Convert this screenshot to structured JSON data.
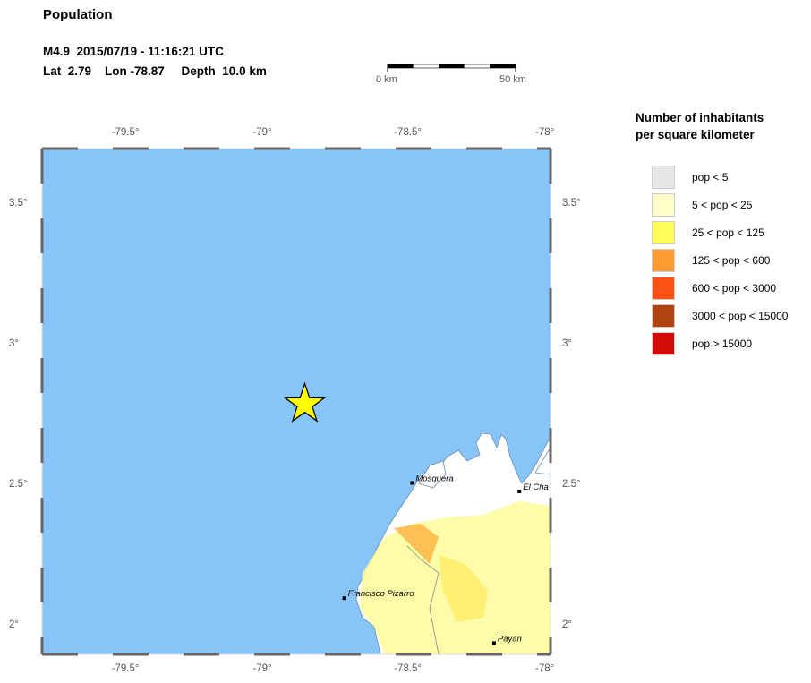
{
  "title": "Population",
  "event": {
    "line1": "M4.9  2015/07/19 - 11:16:21 UTC",
    "line2": "Lat  2.79    Lon -78.87     Depth  10.0 km",
    "lat": 2.79,
    "lon": -78.87,
    "depth_km": 10.0,
    "magnitude": 4.9
  },
  "scale_bar": {
    "start_label": "0 km",
    "end_label": "50 km"
  },
  "map": {
    "lon_range": [
      -79.8,
      -78.0
    ],
    "lat_range": [
      1.9,
      3.7
    ],
    "lon_ticks": [
      "-79.5°",
      "-79°",
      "-78.5°",
      "-78°"
    ],
    "lat_ticks": [
      "3.5°",
      "3°",
      "2.5°",
      "2°"
    ],
    "ocean_color": "#87c5f8",
    "epicenter_marker": "star-icon",
    "cities": [
      {
        "name": "Mosquera",
        "lat": 2.51,
        "lon": -78.49
      },
      {
        "name": "El Cha",
        "lat": 2.48,
        "lon": -78.11
      },
      {
        "name": "Francisco Pizarro",
        "lat": 2.1,
        "lon": -78.73
      },
      {
        "name": "Payan",
        "lat": 1.94,
        "lon": -78.2
      }
    ]
  },
  "legend": {
    "title_line1": "Number of inhabitants",
    "title_line2": "per square kilometer",
    "items": [
      {
        "label": "pop < 5",
        "color": "#e6e6e6"
      },
      {
        "label": "5 < pop < 25",
        "color": "#fffdc8"
      },
      {
        "label": "25 < pop < 125",
        "color": "#fdfd5a"
      },
      {
        "label": "125 < pop < 600",
        "color": "#fd9a32"
      },
      {
        "label": "600 < pop < 3000",
        "color": "#fd5214"
      },
      {
        "label": "3000 < pop < 15000",
        "color": "#b04410"
      },
      {
        "label": "pop > 15000",
        "color": "#d40a0a"
      }
    ]
  }
}
